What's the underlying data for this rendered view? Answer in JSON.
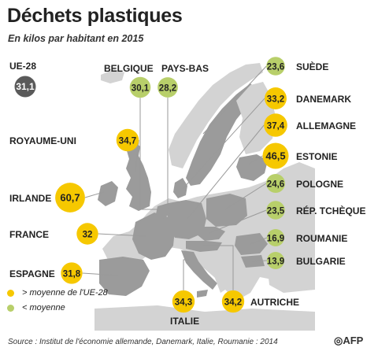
{
  "title": "Déchets plastiques",
  "subtitle": "En kilos par habitant en 2015",
  "source": "Source : Institut de l'économie allemande, Danemark, Italie, Roumanie : 2014",
  "logo_text": "AFP",
  "legend": [
    {
      "label": "> moyenne de l'UE-28",
      "color": "#f6c800"
    },
    {
      "label": "< moyenne",
      "color": "#b8cf6a"
    }
  ],
  "colors": {
    "above": "#f6c800",
    "below": "#b8cf6a",
    "eu": "#5a5a5a",
    "land": "#d3d3d3",
    "highlight": "#9b9b9b",
    "sea": "#ffffff",
    "leader": "#9a9a9a"
  },
  "chart_data": {
    "type": "bubble-map",
    "title": "Déchets plastiques",
    "subtitle": "En kilos par habitant en 2015",
    "unit": "kg",
    "reference": {
      "name": "UE-28",
      "value": 31.1,
      "label": "31,1"
    },
    "countries": [
      {
        "name": "ROYAUME-UNI",
        "value": 34.7,
        "label": "34,7",
        "group": "above"
      },
      {
        "name": "IRLANDE",
        "value": 60.7,
        "label": "60,7",
        "group": "above"
      },
      {
        "name": "FRANCE",
        "value": 32.0,
        "label": "32",
        "group": "above"
      },
      {
        "name": "ESPAGNE",
        "value": 31.8,
        "label": "31,8",
        "group": "above"
      },
      {
        "name": "BELGIQUE",
        "value": 30.1,
        "label": "30,1",
        "group": "below"
      },
      {
        "name": "PAYS-BAS",
        "value": 28.2,
        "label": "28,2",
        "group": "below"
      },
      {
        "name": "SUÈDE",
        "value": 23.6,
        "label": "23,6",
        "group": "below"
      },
      {
        "name": "DANEMARK",
        "value": 33.2,
        "label": "33,2",
        "group": "above"
      },
      {
        "name": "ALLEMAGNE",
        "value": 37.4,
        "label": "37,4",
        "group": "above"
      },
      {
        "name": "ESTONIE",
        "value": 46.5,
        "label": "46,5",
        "group": "above"
      },
      {
        "name": "POLOGNE",
        "value": 24.6,
        "label": "24,6",
        "group": "below"
      },
      {
        "name": "RÉP. TCHÈQUE",
        "value": 23.5,
        "label": "23,5",
        "group": "below"
      },
      {
        "name": "ROUMANIE",
        "value": 16.9,
        "label": "16,9",
        "group": "below"
      },
      {
        "name": "BULGARIE",
        "value": 13.9,
        "label": "13,9",
        "group": "below"
      },
      {
        "name": "ITALIE",
        "value": 34.3,
        "label": "34,3",
        "group": "above"
      },
      {
        "name": "AUTRICHE",
        "value": 34.2,
        "label": "34,2",
        "group": "above"
      }
    ]
  }
}
